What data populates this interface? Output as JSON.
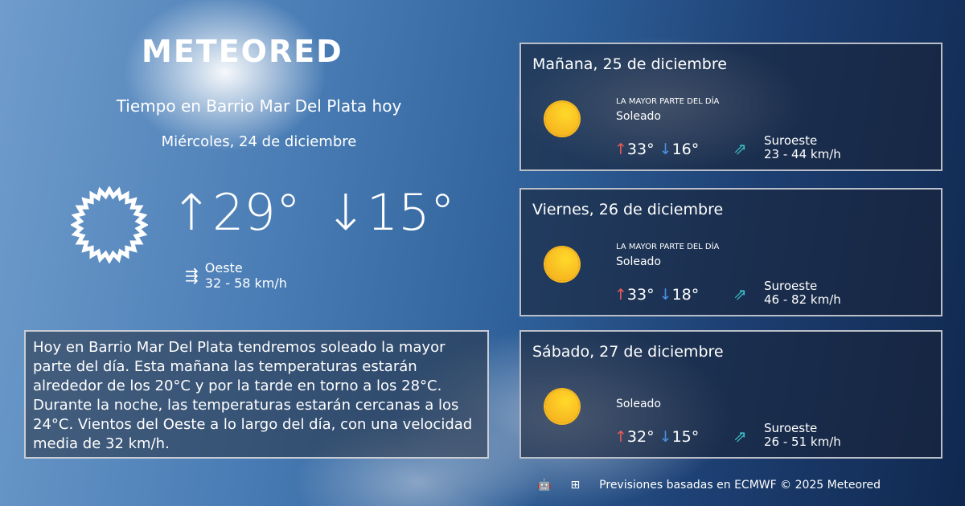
{
  "brand": "METEORED",
  "header": {
    "title": "Tiempo en Barrio Mar Del Plata hoy",
    "date": "Miércoles, 24 de diciembre"
  },
  "today": {
    "icon": "sun-outline-icon",
    "max": "29°",
    "min": "15°",
    "wind_dir": "Oeste",
    "wind_speed": "32 - 58 km/h"
  },
  "description": "Hoy en Barrio Mar Del Plata tendremos soleado la mayor parte del día. Esta mañana las temperaturas estarán alrededor de los 20°C y por la tarde en torno a los 28°C. Durante la noche, las temperaturas estarán cercanas a los 24°C. Vientos del Oeste a lo largo del día, con una velocidad media de 32 km/h.",
  "forecast": [
    {
      "date": "Mañana, 25 de diciembre",
      "sub": "LA MAYOR PARTE DEL DÍA",
      "cond": "Soleado",
      "max": "33°",
      "min": "16°",
      "wind_dir": "Suroeste",
      "wind_speed": "23 - 44 km/h"
    },
    {
      "date": "Viernes, 26 de diciembre",
      "sub": "LA MAYOR PARTE DEL DÍA",
      "cond": "Soleado",
      "max": "33°",
      "min": "18°",
      "wind_dir": "Suroeste",
      "wind_speed": "46 - 82 km/h"
    },
    {
      "date": "Sábado, 27 de diciembre",
      "sub": "",
      "cond": "Soleado",
      "max": "32°",
      "min": "15°",
      "wind_dir": "Suroeste",
      "wind_speed": "26 - 51 km/h"
    }
  ],
  "footer": {
    "text": "Previsiones basadas en ECMWF © 2025 Meteored",
    "icons": [
      "android-icon",
      "apple-icon",
      "windows-icon"
    ]
  },
  "colors": {
    "max": "#e85a5a",
    "min": "#4a90e0",
    "wind": "#3cc0c8",
    "sun": "#f8b81f"
  }
}
